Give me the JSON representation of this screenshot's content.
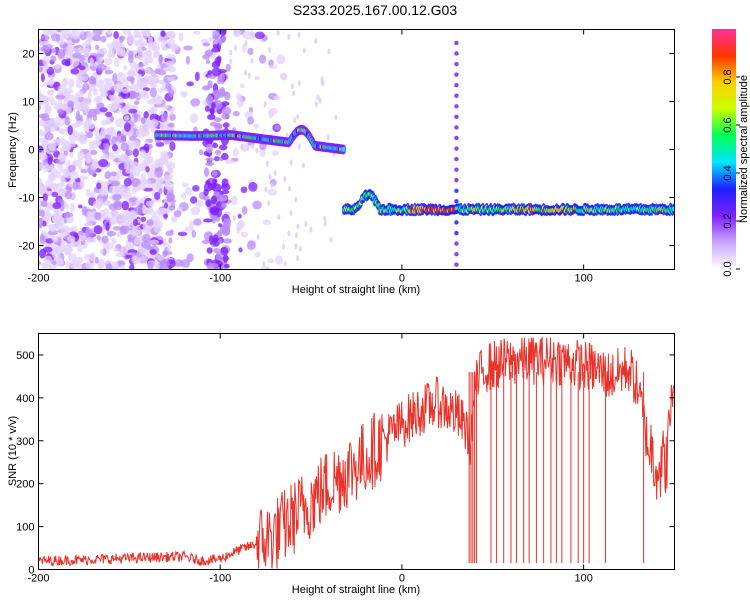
{
  "title": "S233.2025.167.00.12.G03",
  "chart_data": [
    {
      "type": "heatmap",
      "xlabel": "Height of straight line (km)",
      "ylabel": "Frequency (Hz)",
      "xlim": [
        -200,
        150
      ],
      "ylim": [
        -25,
        25
      ],
      "xticks": [
        -200,
        -100,
        0,
        100
      ],
      "yticks": [
        20,
        10,
        0,
        -10,
        -20
      ],
      "grid": false,
      "colorbar": {
        "label": "Normalized spectral amplitude",
        "range": [
          0,
          1
        ],
        "ticks": [
          0.0,
          0.2,
          0.4,
          0.6,
          0.8
        ],
        "colors": [
          "#ffffff",
          "#c9a6ff",
          "#7e1fff",
          "#1f1fff",
          "#00e5ff",
          "#00ff55",
          "#c8ff00",
          "#ffd000",
          "#ff3300",
          "#ff3399"
        ]
      },
      "features": {
        "noise_region_x": [
          -200,
          -65
        ],
        "low_band": {
          "x": [
            -135,
            -32
          ],
          "freq": [
            3,
            2.8,
            3,
            2,
            1,
            0
          ]
        },
        "main_band": {
          "x": [
            -32,
            150
          ],
          "freq": -12.5
        },
        "vertical_line_x": 30
      }
    },
    {
      "type": "line",
      "xlabel": "Height of straight line (km)",
      "ylabel": "SNR (10 * v/v)",
      "xlim": [
        -200,
        150
      ],
      "ylim": [
        0,
        550
      ],
      "xticks": [
        -200,
        -100,
        0,
        100
      ],
      "yticks": [
        0,
        100,
        200,
        300,
        400,
        500
      ],
      "grid": false,
      "series": [
        {
          "color": "#e8322a",
          "x": [
            -200,
            -180,
            -160,
            -140,
            -120,
            -110,
            -100,
            -90,
            -80,
            -70,
            -60,
            -50,
            -40,
            -30,
            -20,
            -10,
            0,
            10,
            20,
            30,
            35,
            38,
            40,
            45,
            55,
            65,
            75,
            85,
            95,
            105,
            115,
            125,
            130,
            135,
            140,
            145,
            150
          ],
          "y": [
            20,
            22,
            25,
            28,
            30,
            20,
            25,
            45,
            60,
            80,
            120,
            160,
            200,
            230,
            260,
            300,
            340,
            370,
            390,
            360,
            330,
            300,
            420,
            470,
            480,
            490,
            490,
            490,
            480,
            470,
            450,
            470,
            420,
            300,
            250,
            240,
            460
          ]
        }
      ],
      "dropout_x": [
        37,
        38,
        39,
        40,
        41,
        49,
        52,
        56,
        60,
        63,
        67,
        70,
        74,
        78,
        82,
        85,
        88,
        93,
        97,
        100,
        103,
        112,
        133
      ],
      "dropout_value": 15
    }
  ]
}
